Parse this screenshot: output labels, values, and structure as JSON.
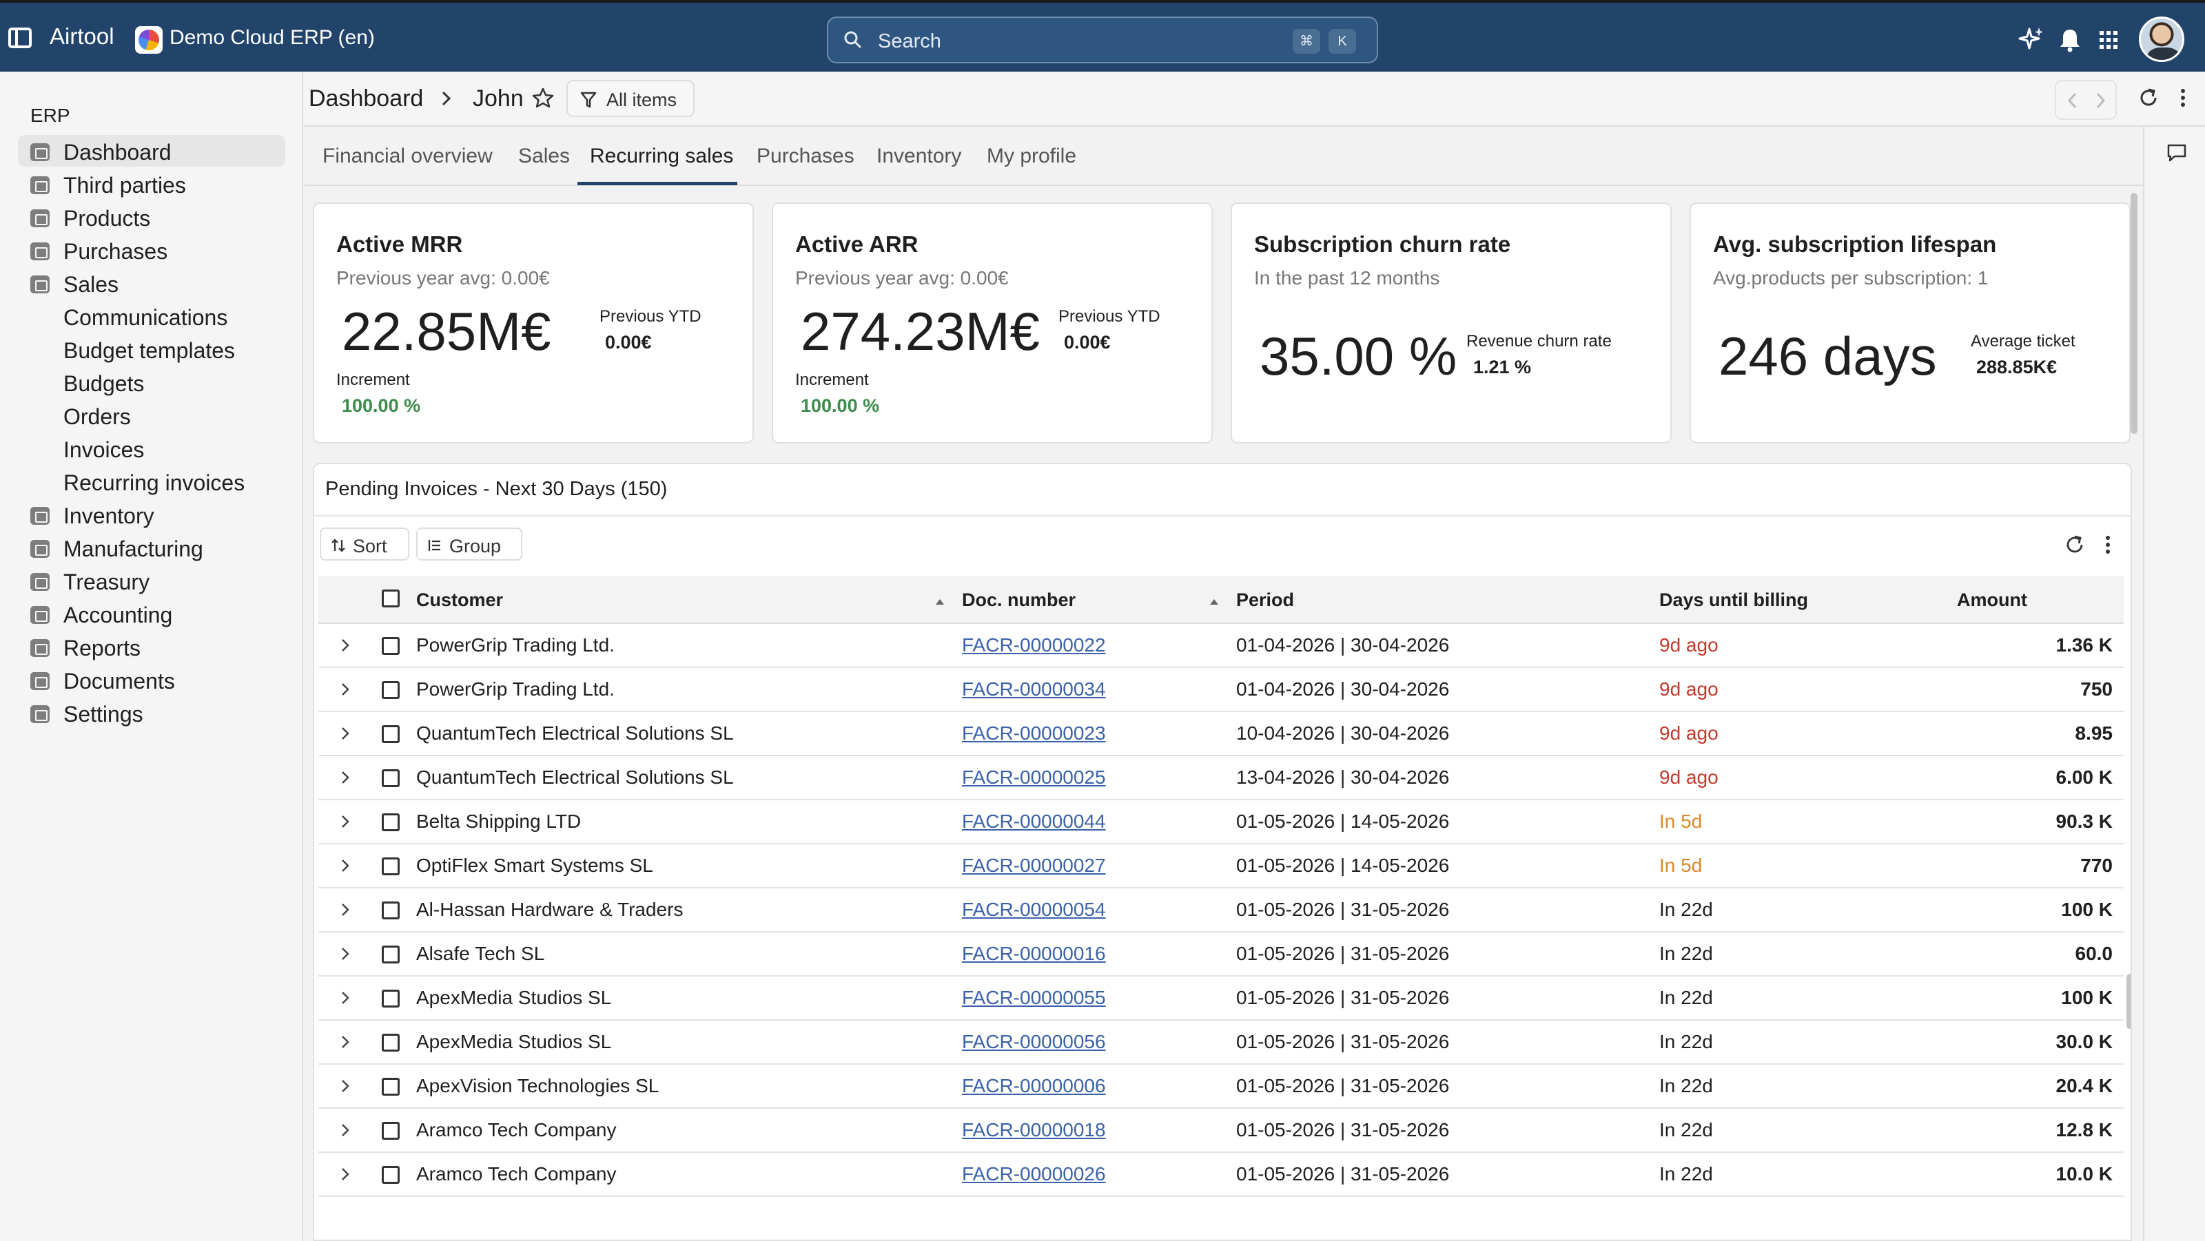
{
  "topbar": {
    "app_name": "Airtool",
    "company_name": "Demo Cloud ERP (en)",
    "search_placeholder": "Search",
    "search_shortcut": [
      "⌘",
      "K"
    ],
    "icons": [
      "sparkle-icon",
      "bell-icon",
      "apps-grid-icon"
    ]
  },
  "sidebar": {
    "section_label": "ERP",
    "items": [
      {
        "label": "Dashboard",
        "icon": "dashboard-icon",
        "active": true
      },
      {
        "label": "Third parties",
        "icon": "contacts-icon"
      },
      {
        "label": "Products",
        "icon": "products-icon"
      },
      {
        "label": "Purchases",
        "icon": "purchases-icon"
      },
      {
        "label": "Sales",
        "icon": "sales-icon"
      },
      {
        "label": "Communications",
        "sub": true
      },
      {
        "label": "Budget templates",
        "sub": true
      },
      {
        "label": "Budgets",
        "sub": true
      },
      {
        "label": "Orders",
        "sub": true
      },
      {
        "label": "Invoices",
        "sub": true
      },
      {
        "label": "Recurring invoices",
        "sub": true
      },
      {
        "label": "Inventory",
        "icon": "inventory-icon"
      },
      {
        "label": "Manufacturing",
        "icon": "manufacturing-icon"
      },
      {
        "label": "Treasury",
        "icon": "treasury-icon"
      },
      {
        "label": "Accounting",
        "icon": "accounting-icon"
      },
      {
        "label": "Reports",
        "icon": "reports-icon"
      },
      {
        "label": "Documents",
        "icon": "documents-icon"
      },
      {
        "label": "Settings",
        "icon": "settings-icon"
      }
    ]
  },
  "header": {
    "breadcrumb": [
      "Dashboard",
      "John"
    ],
    "filter_label": "All items"
  },
  "tabs": [
    {
      "label": "Financial overview"
    },
    {
      "label": "Sales"
    },
    {
      "label": "Recurring sales",
      "active": true
    },
    {
      "label": "Purchases"
    },
    {
      "label": "Inventory"
    },
    {
      "label": "My profile"
    }
  ],
  "cards": {
    "mrr": {
      "title": "Active MRR",
      "subtitle": "Previous year avg: 0.00€",
      "value": "22.85M€",
      "side_label": "Previous YTD",
      "side_value": "0.00€",
      "increment_label": "Increment",
      "increment_value": "100.00 %"
    },
    "arr": {
      "title": "Active ARR",
      "subtitle": "Previous year avg: 0.00€",
      "value": "274.23M€",
      "side_label": "Previous YTD",
      "side_value": "0.00€",
      "increment_label": "Increment",
      "increment_value": "100.00 %"
    },
    "churn": {
      "title": "Subscription churn rate",
      "subtitle": "In the past 12 months",
      "value": "35.00 %",
      "side_label": "Revenue churn rate",
      "side_value": "1.21 %"
    },
    "lifespan": {
      "title": "Avg. subscription lifespan",
      "subtitle": "Avg.products per subscription: 1",
      "value": "246 days",
      "side_label": "Average ticket",
      "side_value": "288.85K€"
    }
  },
  "table": {
    "title": "Pending Invoices - Next 30 Days (150)",
    "sort_label": "Sort",
    "group_label": "Group",
    "columns": {
      "customer": "Customer",
      "doc": "Doc. number",
      "period": "Period",
      "days": "Days until billing",
      "amount": "Amount"
    },
    "status_colors": {
      "overdue": "#c0392b",
      "soon": "#d98a2b",
      "normal": "#1f1f1f"
    },
    "rows": [
      {
        "customer": "PowerGrip Trading Ltd.",
        "doc": "FACR-00000022",
        "period": "01-04-2026 | 30-04-2026",
        "days": "9d ago",
        "status": "overdue",
        "amount": "1.36 K"
      },
      {
        "customer": "PowerGrip Trading Ltd.",
        "doc": "FACR-00000034",
        "period": "01-04-2026 | 30-04-2026",
        "days": "9d ago",
        "status": "overdue",
        "amount": "750"
      },
      {
        "customer": "QuantumTech Electrical Solutions SL",
        "doc": "FACR-00000023",
        "period": "10-04-2026 | 30-04-2026",
        "days": "9d ago",
        "status": "overdue",
        "amount": "8.95"
      },
      {
        "customer": "QuantumTech Electrical Solutions SL",
        "doc": "FACR-00000025",
        "period": "13-04-2026 | 30-04-2026",
        "days": "9d ago",
        "status": "overdue",
        "amount": "6.00 K"
      },
      {
        "customer": "Belta Shipping LTD",
        "doc": "FACR-00000044",
        "period": "01-05-2026 | 14-05-2026",
        "days": "In 5d",
        "status": "soon",
        "amount": "90.3 K"
      },
      {
        "customer": "OptiFlex Smart Systems SL",
        "doc": "FACR-00000027",
        "period": "01-05-2026 | 14-05-2026",
        "days": "In 5d",
        "status": "soon",
        "amount": "770"
      },
      {
        "customer": "Al-Hassan Hardware & Traders",
        "doc": "FACR-00000054",
        "period": "01-05-2026 | 31-05-2026",
        "days": "In 22d",
        "status": "normal",
        "amount": "100 K"
      },
      {
        "customer": "Alsafe Tech SL",
        "doc": "FACR-00000016",
        "period": "01-05-2026 | 31-05-2026",
        "days": "In 22d",
        "status": "normal",
        "amount": "60.0"
      },
      {
        "customer": "ApexMedia Studios SL",
        "doc": "FACR-00000055",
        "period": "01-05-2026 | 31-05-2026",
        "days": "In 22d",
        "status": "normal",
        "amount": "100 K"
      },
      {
        "customer": "ApexMedia Studios SL",
        "doc": "FACR-00000056",
        "period": "01-05-2026 | 31-05-2026",
        "days": "In 22d",
        "status": "normal",
        "amount": "30.0 K"
      },
      {
        "customer": "ApexVision Technologies SL",
        "doc": "FACR-00000006",
        "period": "01-05-2026 | 31-05-2026",
        "days": "In 22d",
        "status": "normal",
        "amount": "20.4 K"
      },
      {
        "customer": "Aramco Tech Company",
        "doc": "FACR-00000018",
        "period": "01-05-2026 | 31-05-2026",
        "days": "In 22d",
        "status": "normal",
        "amount": "12.8 K"
      },
      {
        "customer": "Aramco Tech Company",
        "doc": "FACR-00000026",
        "period": "01-05-2026 | 31-05-2026",
        "days": "In 22d",
        "status": "normal",
        "amount": "10.0 K"
      }
    ]
  }
}
